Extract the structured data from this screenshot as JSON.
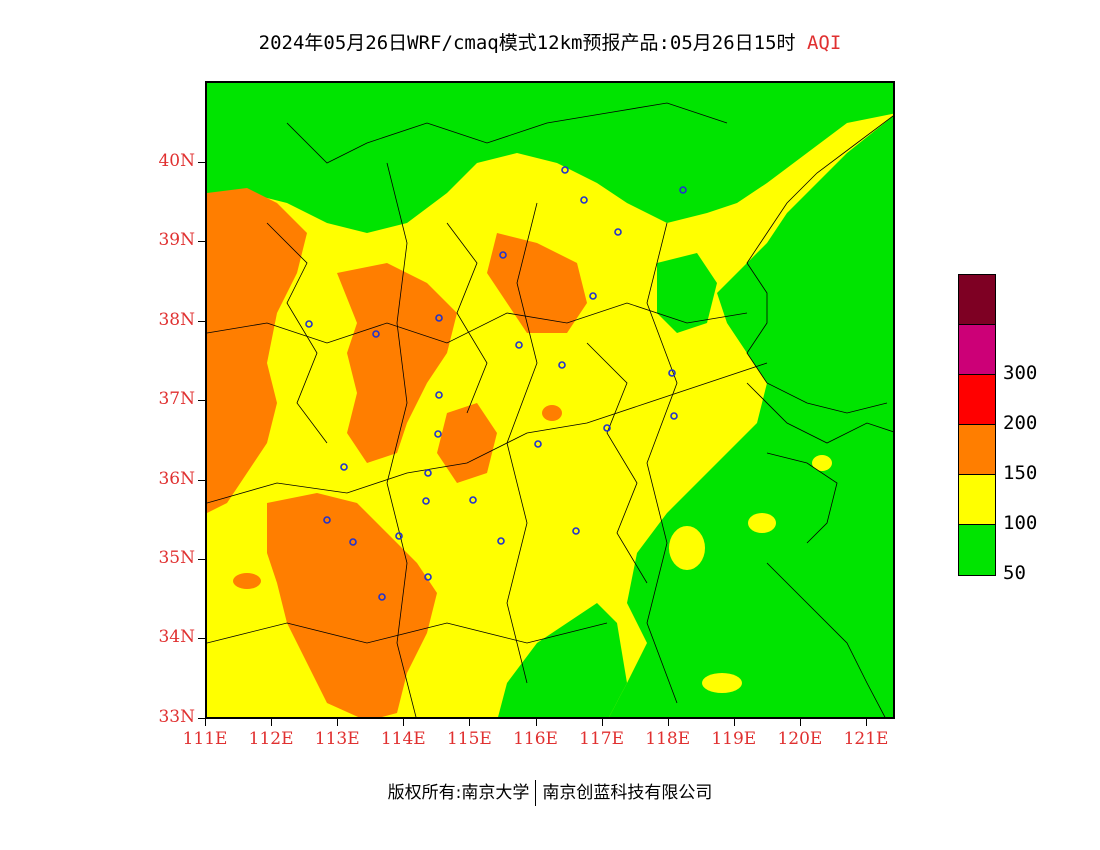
{
  "title": {
    "text": "2024年05月26日WRF/cmaq模式12km预报产品:05月26日15时",
    "variable": "AQI"
  },
  "map": {
    "lat_labels": [
      "40N",
      "39N",
      "38N",
      "37N",
      "36N",
      "35N",
      "34N",
      "33N"
    ],
    "lon_labels": [
      "111E",
      "112E",
      "113E",
      "114E",
      "115E",
      "116E",
      "117E",
      "118E",
      "119E",
      "120E",
      "121E"
    ],
    "colors": {
      "good": "#00e400",
      "moderate": "#ffff00",
      "sensitive": "#ff7e00",
      "unhealthy": "#ff0000",
      "very_unhealthy": "#cc0077",
      "hazardous": "#7e0023",
      "border": "#000000",
      "station": "#2233cc"
    }
  },
  "legend": {
    "bins": [
      {
        "color": "#7e0023",
        "label": ""
      },
      {
        "color": "#cc0077",
        "label": "300"
      },
      {
        "color": "#ff0000",
        "label": "200"
      },
      {
        "color": "#ff7e00",
        "label": "150"
      },
      {
        "color": "#ffff00",
        "label": "100"
      },
      {
        "color": "#00e400",
        "label": "50"
      }
    ]
  },
  "copyright": {
    "left": "版权所有:南京大学",
    "right": "南京创蓝科技有限公司"
  }
}
